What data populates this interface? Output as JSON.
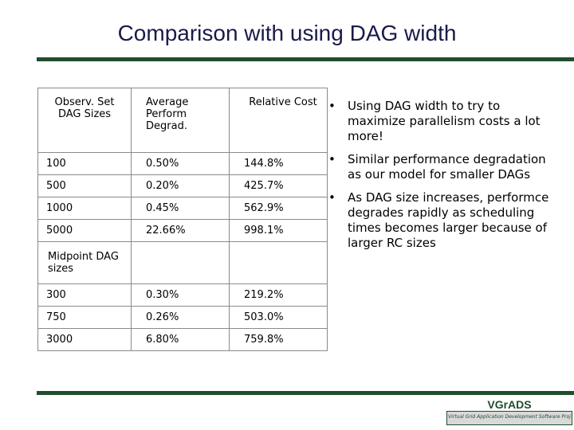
{
  "title": "Comparison with using DAG width",
  "table": {
    "headers": [
      "Observ. Set DAG Sizes",
      "Average Perform Degrad.",
      "Relative Cost"
    ],
    "rows": [
      [
        "100",
        "0.50%",
        "144.8%"
      ],
      [
        "500",
        "0.20%",
        "425.7%"
      ],
      [
        "1000",
        "0.45%",
        "562.9%"
      ],
      [
        "5000",
        "22.66%",
        "998.1%"
      ]
    ],
    "midpoint_label": "Midpoint DAG sizes",
    "midpoint_rows": [
      [
        "300",
        "0.30%",
        "219.2%"
      ],
      [
        "750",
        "0.26%",
        "503.0%"
      ],
      [
        "3000",
        "6.80%",
        "759.8%"
      ]
    ]
  },
  "bullets": [
    "Using DAG width to try to maximize parallelism costs a lot more!",
    "Similar performance degradation as our model for smaller DAGs",
    "As DAG size increases, performce degrades rapidly as scheduling times becomes larger because of larger RC sizes"
  ],
  "bullet_glyph": "•",
  "logo": {
    "text": "VGrADS",
    "subtitle": "Virtual Grid Application Development Software Project"
  },
  "colors": {
    "rule": "#1f4d2e",
    "title": "#1a1a4a"
  }
}
